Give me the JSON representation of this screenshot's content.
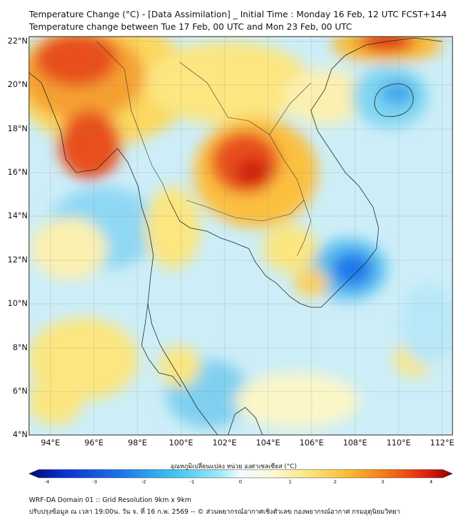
{
  "title_line1": "Temperature Change (°C) - [Data Assimilation] _ Initial Time : Monday 16 Feb, 12 UTC FCST+144",
  "title_line2": "Temperature change between Tue 17 Feb, 00 UTC and Mon 23 Feb, 00 UTC",
  "lat_labels": [
    "22°N",
    "20°N",
    "18°N",
    "16°N",
    "14°N",
    "12°N",
    "10°N",
    "8°N",
    "6°N",
    "4°N"
  ],
  "lon_labels": [
    "94°E",
    "96°E",
    "98°E",
    "100°E",
    "102°E",
    "104°E",
    "106°E",
    "108°E",
    "110°E",
    "112°E"
  ],
  "colorbar": {
    "title": "อุณหภูมิเปลี่ยนแปลง หน่วย องศาเซลเซียส (°C)",
    "ticks": [
      "-4",
      "-3",
      "-2",
      "-1",
      "0",
      "1",
      "2",
      "3",
      "4"
    ],
    "min": -4,
    "max": 4,
    "colors": [
      "#000a6e",
      "#0a2fd0",
      "#1a78ea",
      "#3cc4f0",
      "#9ee8f6",
      "#f4fbff",
      "#fbf8d2",
      "#fbe680",
      "#fbb830",
      "#f26a14",
      "#e02010",
      "#8c0000"
    ]
  },
  "footer_line1": "WRF-DA Domain 01 :: Grid Resolution 9km x 9km",
  "footer_line2": "ปรับปรุงข้อมูล ณ เวลา 19:00น. วัน จ. ที่ 16 ก.พ. 2569 -- © ส่วนพยากรณ์อากาศเชิงตัวเลข กองพยากรณ์อากาศ กรมอุตุนิยมวิทยา",
  "map_extent": {
    "lon_min": 93,
    "lon_max": 112.6,
    "lat_min": 4,
    "lat_max": 22.2
  }
}
